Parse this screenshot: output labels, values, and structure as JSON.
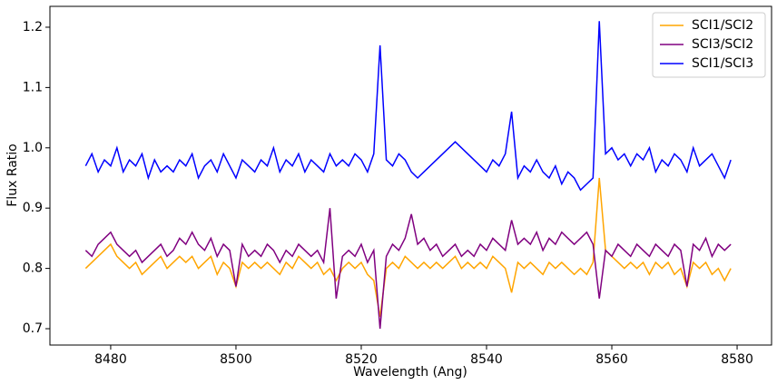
{
  "chart_data": {
    "type": "line",
    "xlabel": "Wavelength (Ang)",
    "ylabel": "Flux Ratio",
    "x": [
      8476,
      8477,
      8478,
      8479,
      8480,
      8481,
      8482,
      8483,
      8484,
      8485,
      8486,
      8487,
      8488,
      8489,
      8490,
      8491,
      8492,
      8493,
      8494,
      8495,
      8496,
      8497,
      8498,
      8499,
      8500,
      8501,
      8502,
      8503,
      8504,
      8505,
      8506,
      8507,
      8508,
      8509,
      8510,
      8511,
      8512,
      8513,
      8514,
      8515,
      8516,
      8517,
      8518,
      8519,
      8520,
      8521,
      8522,
      8523,
      8524,
      8525,
      8526,
      8527,
      8528,
      8529,
      8530,
      8531,
      8532,
      8533,
      8534,
      8535,
      8536,
      8537,
      8538,
      8539,
      8540,
      8541,
      8542,
      8543,
      8544,
      8545,
      8546,
      8547,
      8548,
      8549,
      8550,
      8551,
      8552,
      8553,
      8554,
      8555,
      8556,
      8557,
      8558,
      8559,
      8560,
      8561,
      8562,
      8563,
      8564,
      8565,
      8566,
      8567,
      8568,
      8569,
      8570,
      8571,
      8572,
      8573,
      8574,
      8575,
      8576,
      8577,
      8578,
      8579
    ],
    "series": [
      {
        "name": "SCI1/SCI2",
        "color": "orange",
        "values": [
          0.8,
          0.81,
          0.82,
          0.83,
          0.84,
          0.82,
          0.81,
          0.8,
          0.81,
          0.79,
          0.8,
          0.81,
          0.82,
          0.8,
          0.81,
          0.82,
          0.81,
          0.82,
          0.8,
          0.81,
          0.82,
          0.79,
          0.81,
          0.8,
          0.77,
          0.81,
          0.8,
          0.81,
          0.8,
          0.81,
          0.8,
          0.79,
          0.81,
          0.8,
          0.82,
          0.81,
          0.8,
          0.81,
          0.79,
          0.8,
          0.78,
          0.8,
          0.81,
          0.8,
          0.81,
          0.79,
          0.78,
          0.72,
          0.8,
          0.81,
          0.8,
          0.82,
          0.81,
          0.8,
          0.81,
          0.8,
          0.81,
          0.8,
          0.81,
          0.82,
          0.8,
          0.81,
          0.8,
          0.81,
          0.8,
          0.82,
          0.81,
          0.8,
          0.76,
          0.81,
          0.8,
          0.81,
          0.8,
          0.79,
          0.81,
          0.8,
          0.81,
          0.8,
          0.79,
          0.8,
          0.79,
          0.81,
          0.95,
          0.83,
          0.82,
          0.81,
          0.8,
          0.81,
          0.8,
          0.81,
          0.79,
          0.81,
          0.8,
          0.81,
          0.79,
          0.8,
          0.77,
          0.81,
          0.8,
          0.81,
          0.79,
          0.8,
          0.78,
          0.8
        ]
      },
      {
        "name": "SCI3/SCI2",
        "color": "purple",
        "values": [
          0.83,
          0.82,
          0.84,
          0.85,
          0.86,
          0.84,
          0.83,
          0.82,
          0.83,
          0.81,
          0.82,
          0.83,
          0.84,
          0.82,
          0.83,
          0.85,
          0.84,
          0.86,
          0.84,
          0.83,
          0.85,
          0.82,
          0.84,
          0.83,
          0.77,
          0.84,
          0.82,
          0.83,
          0.82,
          0.84,
          0.83,
          0.81,
          0.83,
          0.82,
          0.84,
          0.83,
          0.82,
          0.83,
          0.81,
          0.9,
          0.75,
          0.82,
          0.83,
          0.82,
          0.84,
          0.81,
          0.83,
          0.7,
          0.82,
          0.84,
          0.83,
          0.85,
          0.89,
          0.84,
          0.85,
          0.83,
          0.84,
          0.82,
          0.83,
          0.84,
          0.82,
          0.83,
          0.82,
          0.84,
          0.83,
          0.85,
          0.84,
          0.83,
          0.88,
          0.84,
          0.85,
          0.84,
          0.86,
          0.83,
          0.85,
          0.84,
          0.86,
          0.85,
          0.84,
          0.85,
          0.86,
          0.84,
          0.75,
          0.83,
          0.82,
          0.84,
          0.83,
          0.82,
          0.84,
          0.83,
          0.82,
          0.84,
          0.83,
          0.82,
          0.84,
          0.83,
          0.77,
          0.84,
          0.83,
          0.85,
          0.82,
          0.84,
          0.83,
          0.84
        ]
      },
      {
        "name": "SCI1/SCI3",
        "color": "blue",
        "values": [
          0.97,
          0.99,
          0.96,
          0.98,
          0.97,
          1.0,
          0.96,
          0.98,
          0.97,
          0.99,
          0.95,
          0.98,
          0.96,
          0.97,
          0.96,
          0.98,
          0.97,
          0.99,
          0.95,
          0.97,
          0.98,
          0.96,
          0.99,
          0.97,
          0.95,
          0.98,
          0.97,
          0.96,
          0.98,
          0.97,
          1.0,
          0.96,
          0.98,
          0.97,
          0.99,
          0.96,
          0.98,
          0.97,
          0.96,
          0.99,
          0.97,
          0.98,
          0.97,
          0.99,
          0.98,
          0.96,
          0.99,
          1.17,
          0.98,
          0.97,
          0.99,
          0.98,
          0.96,
          0.95,
          0.96,
          0.97,
          0.98,
          0.99,
          1.0,
          1.01,
          1.0,
          0.99,
          0.98,
          0.97,
          0.96,
          0.98,
          0.97,
          0.99,
          1.06,
          0.95,
          0.97,
          0.96,
          0.98,
          0.96,
          0.95,
          0.97,
          0.94,
          0.96,
          0.95,
          0.93,
          0.94,
          0.95,
          1.21,
          0.99,
          1.0,
          0.98,
          0.99,
          0.97,
          0.99,
          0.98,
          1.0,
          0.96,
          0.98,
          0.97,
          0.99,
          0.98,
          0.96,
          1.0,
          0.97,
          0.98,
          0.99,
          0.97,
          0.95,
          0.98
        ]
      }
    ],
    "xlim": [
      8470.3,
      8585.5
    ],
    "xticks": [
      8480,
      8500,
      8520,
      8540,
      8560,
      8580
    ],
    "ylim": [
      0.6729,
      1.2346
    ],
    "yticks": [
      0.7,
      0.8,
      0.9,
      {
        "value": 1,
        "label": "1.0"
      },
      1.1,
      1.2
    ],
    "legend": "upper right"
  }
}
